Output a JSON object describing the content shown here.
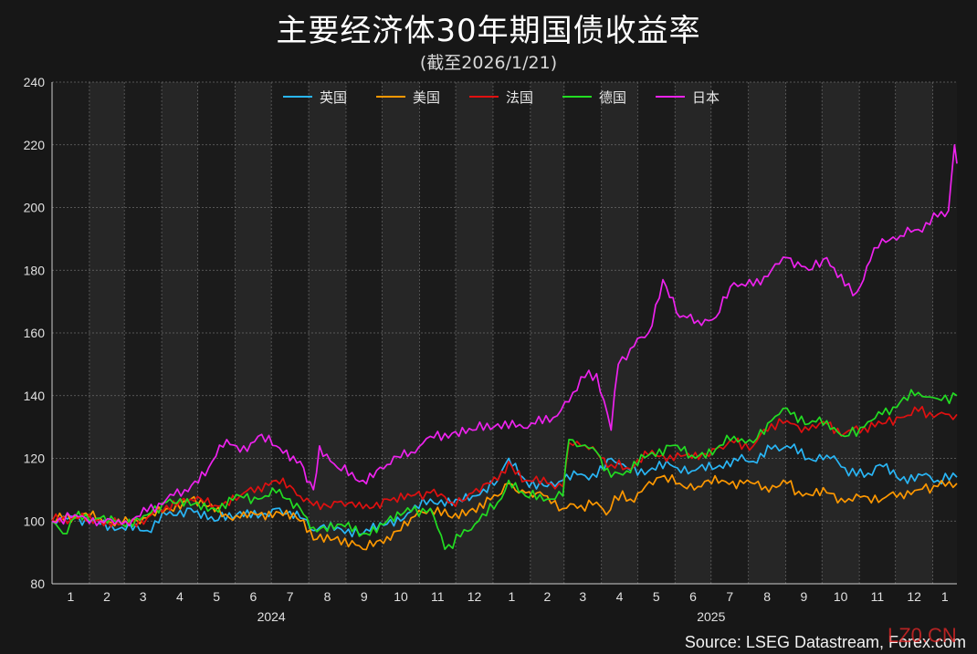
{
  "header": {
    "title": "主要经济体30年期国债收益率",
    "subtitle": "(截至2026/1/21)"
  },
  "footer": {
    "source": "Source: LSEG Datastream, Forex.com",
    "watermark": "LZ0.CN"
  },
  "colors": {
    "background": "#171717",
    "plot_band_dark": "#1b1b1b",
    "plot_band_light": "#262626",
    "grid": "#6a6a6a"
  },
  "chart_data": {
    "type": "line",
    "title": "主要经济体30年期国债收益率",
    "subtitle": "(截至2026/1/21)",
    "xlabel": "",
    "ylabel": "",
    "ylim": [
      80,
      240
    ],
    "yticks": [
      80,
      100,
      120,
      140,
      160,
      180,
      200,
      220,
      240
    ],
    "x_range": [
      "2024-01-01",
      "2026-01-21"
    ],
    "month_ticks": [
      "1",
      "2",
      "3",
      "4",
      "5",
      "6",
      "7",
      "8",
      "9",
      "10",
      "11",
      "12",
      "1",
      "2",
      "3",
      "4",
      "5",
      "6",
      "7",
      "8",
      "9",
      "10",
      "11",
      "12",
      "1"
    ],
    "year_labels": [
      {
        "label": "2024",
        "at": "2024-07-01"
      },
      {
        "label": "2025",
        "at": "2025-07-01"
      }
    ],
    "grid": true,
    "legend_position": "top-center",
    "series": [
      {
        "name": "英国",
        "color": "#29b6f6",
        "points": [
          [
            "2024-01-01",
            100
          ],
          [
            "2024-01-20",
            101
          ],
          [
            "2024-02-10",
            99
          ],
          [
            "2024-02-28",
            98
          ],
          [
            "2024-03-20",
            97
          ],
          [
            "2024-04-05",
            102
          ],
          [
            "2024-04-25",
            104
          ],
          [
            "2024-05-15",
            100
          ],
          [
            "2024-06-05",
            103
          ],
          [
            "2024-06-20",
            101
          ],
          [
            "2024-07-05",
            104
          ],
          [
            "2024-07-25",
            101
          ],
          [
            "2024-08-05",
            97
          ],
          [
            "2024-08-25",
            98
          ],
          [
            "2024-09-15",
            96
          ],
          [
            "2024-10-05",
            99
          ],
          [
            "2024-10-25",
            103
          ],
          [
            "2024-11-10",
            107
          ],
          [
            "2024-11-28",
            105
          ],
          [
            "2024-12-15",
            108
          ],
          [
            "2025-01-05",
            113
          ],
          [
            "2025-01-14",
            120
          ],
          [
            "2025-01-28",
            113
          ],
          [
            "2025-02-15",
            111
          ],
          [
            "2025-02-28",
            113
          ],
          [
            "2025-03-15",
            115
          ],
          [
            "2025-03-28",
            114
          ],
          [
            "2025-04-09",
            120
          ],
          [
            "2025-04-22",
            117
          ],
          [
            "2025-05-10",
            116
          ],
          [
            "2025-05-28",
            118
          ],
          [
            "2025-06-15",
            116
          ],
          [
            "2025-07-05",
            117
          ],
          [
            "2025-07-20",
            120
          ],
          [
            "2025-08-05",
            119
          ],
          [
            "2025-08-20",
            123
          ],
          [
            "2025-09-02",
            124
          ],
          [
            "2025-09-20",
            120
          ],
          [
            "2025-10-05",
            121
          ],
          [
            "2025-10-20",
            117
          ],
          [
            "2025-11-05",
            114
          ],
          [
            "2025-11-18",
            118
          ],
          [
            "2025-12-05",
            113
          ],
          [
            "2025-12-20",
            115
          ],
          [
            "2026-01-05",
            113
          ],
          [
            "2026-01-21",
            114
          ]
        ]
      },
      {
        "name": "美国",
        "color": "#ff9800",
        "points": [
          [
            "2024-01-01",
            100
          ],
          [
            "2024-01-20",
            102
          ],
          [
            "2024-02-10",
            101
          ],
          [
            "2024-02-28",
            99
          ],
          [
            "2024-03-20",
            101
          ],
          [
            "2024-04-05",
            104
          ],
          [
            "2024-04-25",
            107
          ],
          [
            "2024-05-15",
            103
          ],
          [
            "2024-06-05",
            101
          ],
          [
            "2024-06-20",
            102
          ],
          [
            "2024-07-05",
            103
          ],
          [
            "2024-07-25",
            100
          ],
          [
            "2024-08-05",
            94
          ],
          [
            "2024-08-25",
            95
          ],
          [
            "2024-09-15",
            91
          ],
          [
            "2024-10-05",
            95
          ],
          [
            "2024-10-25",
            101
          ],
          [
            "2024-11-10",
            104
          ],
          [
            "2024-11-28",
            101
          ],
          [
            "2024-12-15",
            104
          ],
          [
            "2025-01-05",
            108
          ],
          [
            "2025-01-14",
            112
          ],
          [
            "2025-01-28",
            109
          ],
          [
            "2025-02-15",
            108
          ],
          [
            "2025-02-28",
            104
          ],
          [
            "2025-03-15",
            105
          ],
          [
            "2025-03-28",
            106
          ],
          [
            "2025-04-05",
            102
          ],
          [
            "2025-04-12",
            108
          ],
          [
            "2025-04-25",
            107
          ],
          [
            "2025-05-20",
            114
          ],
          [
            "2025-06-05",
            112
          ],
          [
            "2025-06-20",
            111
          ],
          [
            "2025-07-10",
            113
          ],
          [
            "2025-07-28",
            112
          ],
          [
            "2025-08-15",
            111
          ],
          [
            "2025-09-02",
            112
          ],
          [
            "2025-09-15",
            108
          ],
          [
            "2025-10-05",
            109
          ],
          [
            "2025-10-20",
            106
          ],
          [
            "2025-11-05",
            108
          ],
          [
            "2025-11-20",
            107
          ],
          [
            "2025-12-05",
            109
          ],
          [
            "2025-12-20",
            110
          ],
          [
            "2026-01-05",
            111
          ],
          [
            "2026-01-21",
            112
          ]
        ]
      },
      {
        "name": "法国",
        "color": "#e01010",
        "points": [
          [
            "2024-01-01",
            100
          ],
          [
            "2024-01-20",
            101
          ],
          [
            "2024-02-10",
            100
          ],
          [
            "2024-02-28",
            99
          ],
          [
            "2024-03-20",
            101
          ],
          [
            "2024-04-05",
            105
          ],
          [
            "2024-04-25",
            107
          ],
          [
            "2024-05-15",
            105
          ],
          [
            "2024-06-05",
            108
          ],
          [
            "2024-06-20",
            111
          ],
          [
            "2024-07-05",
            113
          ],
          [
            "2024-07-25",
            108
          ],
          [
            "2024-08-05",
            105
          ],
          [
            "2024-08-25",
            106
          ],
          [
            "2024-09-15",
            104
          ],
          [
            "2024-10-05",
            107
          ],
          [
            "2024-10-25",
            108
          ],
          [
            "2024-11-10",
            109
          ],
          [
            "2024-11-28",
            106
          ],
          [
            "2024-12-15",
            109
          ],
          [
            "2025-01-05",
            113
          ],
          [
            "2025-01-14",
            119
          ],
          [
            "2025-01-28",
            113
          ],
          [
            "2025-02-15",
            112
          ],
          [
            "2025-02-28",
            111
          ],
          [
            "2025-03-05",
            125
          ],
          [
            "2025-03-15",
            124
          ],
          [
            "2025-03-28",
            122
          ],
          [
            "2025-04-09",
            118
          ],
          [
            "2025-04-22",
            117
          ],
          [
            "2025-05-10",
            121
          ],
          [
            "2025-05-28",
            121
          ],
          [
            "2025-06-15",
            120
          ],
          [
            "2025-07-05",
            123
          ],
          [
            "2025-07-20",
            125
          ],
          [
            "2025-08-05",
            124
          ],
          [
            "2025-08-20",
            131
          ],
          [
            "2025-09-02",
            132
          ],
          [
            "2025-09-20",
            129
          ],
          [
            "2025-10-05",
            131
          ],
          [
            "2025-10-20",
            128
          ],
          [
            "2025-11-05",
            130
          ],
          [
            "2025-11-20",
            131
          ],
          [
            "2025-12-05",
            133
          ],
          [
            "2025-12-20",
            135
          ],
          [
            "2026-01-05",
            134
          ],
          [
            "2026-01-21",
            134
          ]
        ]
      },
      {
        "name": "德国",
        "color": "#22dd22",
        "points": [
          [
            "2024-01-01",
            100
          ],
          [
            "2024-01-10",
            96
          ],
          [
            "2024-01-20",
            101
          ],
          [
            "2024-02-10",
            101
          ],
          [
            "2024-02-28",
            99
          ],
          [
            "2024-03-20",
            102
          ],
          [
            "2024-04-05",
            106
          ],
          [
            "2024-04-25",
            105
          ],
          [
            "2024-05-15",
            104
          ],
          [
            "2024-06-05",
            108
          ],
          [
            "2024-06-20",
            107
          ],
          [
            "2024-07-05",
            109
          ],
          [
            "2024-07-25",
            104
          ],
          [
            "2024-08-05",
            98
          ],
          [
            "2024-08-25",
            99
          ],
          [
            "2024-09-15",
            96
          ],
          [
            "2024-10-05",
            100
          ],
          [
            "2024-10-25",
            103
          ],
          [
            "2024-11-10",
            104
          ],
          [
            "2024-11-22",
            91
          ],
          [
            "2024-12-05",
            95
          ],
          [
            "2024-12-20",
            100
          ],
          [
            "2025-01-05",
            106
          ],
          [
            "2025-01-14",
            113
          ],
          [
            "2025-01-28",
            108
          ],
          [
            "2025-02-15",
            107
          ],
          [
            "2025-02-28",
            108
          ],
          [
            "2025-03-05",
            126
          ],
          [
            "2025-03-15",
            124
          ],
          [
            "2025-03-28",
            122
          ],
          [
            "2025-04-09",
            114
          ],
          [
            "2025-04-22",
            116
          ],
          [
            "2025-05-10",
            121
          ],
          [
            "2025-05-28",
            124
          ],
          [
            "2025-06-15",
            121
          ],
          [
            "2025-07-05",
            123
          ],
          [
            "2025-07-20",
            127
          ],
          [
            "2025-08-05",
            125
          ],
          [
            "2025-08-20",
            132
          ],
          [
            "2025-09-02",
            136
          ],
          [
            "2025-09-20",
            131
          ],
          [
            "2025-10-05",
            132
          ],
          [
            "2025-10-20",
            127
          ],
          [
            "2025-11-05",
            130
          ],
          [
            "2025-11-20",
            134
          ],
          [
            "2025-12-05",
            138
          ],
          [
            "2025-12-20",
            141
          ],
          [
            "2026-01-05",
            139
          ],
          [
            "2026-01-21",
            140
          ]
        ]
      },
      {
        "name": "日本",
        "color": "#ee22ee",
        "points": [
          [
            "2024-01-01",
            100
          ],
          [
            "2024-01-20",
            102
          ],
          [
            "2024-02-10",
            100
          ],
          [
            "2024-02-28",
            99
          ],
          [
            "2024-03-20",
            103
          ],
          [
            "2024-04-05",
            107
          ],
          [
            "2024-04-20",
            110
          ],
          [
            "2024-05-10",
            117
          ],
          [
            "2024-05-25",
            126
          ],
          [
            "2024-06-05",
            122
          ],
          [
            "2024-06-20",
            127
          ],
          [
            "2024-07-05",
            124
          ],
          [
            "2024-07-25",
            119
          ],
          [
            "2024-08-05",
            110
          ],
          [
            "2024-08-10",
            124
          ],
          [
            "2024-08-25",
            117
          ],
          [
            "2024-09-15",
            113
          ],
          [
            "2024-10-05",
            118
          ],
          [
            "2024-10-25",
            122
          ],
          [
            "2024-11-10",
            127
          ],
          [
            "2024-11-28",
            128
          ],
          [
            "2024-12-15",
            129
          ],
          [
            "2025-01-05",
            131
          ],
          [
            "2025-01-20",
            130
          ],
          [
            "2025-02-05",
            131
          ],
          [
            "2025-02-20",
            133
          ],
          [
            "2025-03-05",
            138
          ],
          [
            "2025-03-15",
            146
          ],
          [
            "2025-03-28",
            147
          ],
          [
            "2025-04-09",
            129
          ],
          [
            "2025-04-15",
            150
          ],
          [
            "2025-04-25",
            155
          ],
          [
            "2025-05-10",
            160
          ],
          [
            "2025-05-22",
            177
          ],
          [
            "2025-06-05",
            165
          ],
          [
            "2025-06-20",
            164
          ],
          [
            "2025-07-05",
            165
          ],
          [
            "2025-07-20",
            176
          ],
          [
            "2025-08-05",
            175
          ],
          [
            "2025-08-20",
            180
          ],
          [
            "2025-09-02",
            184
          ],
          [
            "2025-09-20",
            180
          ],
          [
            "2025-10-05",
            184
          ],
          [
            "2025-10-20",
            175
          ],
          [
            "2025-10-30",
            173
          ],
          [
            "2025-11-10",
            183
          ],
          [
            "2025-11-20",
            190
          ],
          [
            "2025-12-05",
            191
          ],
          [
            "2025-12-20",
            193
          ],
          [
            "2026-01-05",
            197
          ],
          [
            "2026-01-14",
            199
          ],
          [
            "2026-01-19",
            220
          ],
          [
            "2026-01-21",
            214
          ]
        ]
      }
    ]
  }
}
